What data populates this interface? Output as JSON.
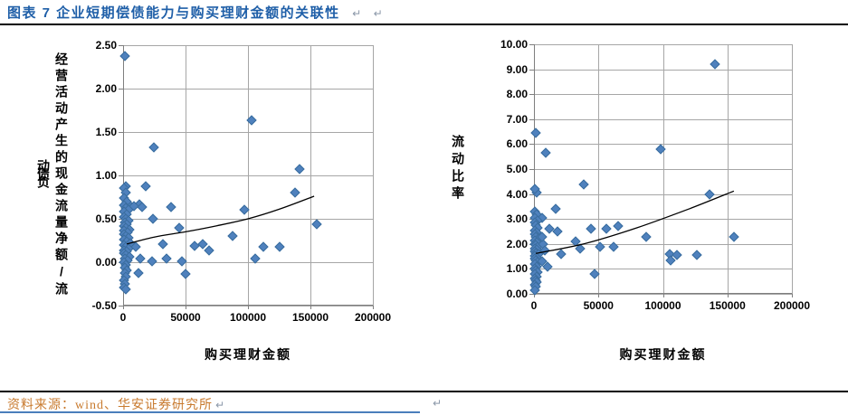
{
  "page": {
    "title": "图表 7  企业短期偿债能力与购买理财金额的关联性",
    "paragraph_mark": "↵",
    "source": "资料来源：wind、华安证券研究所"
  },
  "colors": {
    "title_blue": "#1F5FA8",
    "source_orange": "#C87A2E",
    "marker_fill": "#4F81BD",
    "marker_edge": "#3A6D9E",
    "gridline": "#A6A6A6",
    "axis": "#7F7F7F",
    "trend": "#000000",
    "divider": "#000000",
    "bottom_border": "#4A7EBB",
    "paragraph_mark": "#8A97A8"
  },
  "chart_data": [
    {
      "type": "scatter",
      "xlabel": "购买理财金额",
      "ylabel": "经营活动产生的现金流量净额/流动负债",
      "ylabel_wrap": 17,
      "xlim": [
        0,
        200000
      ],
      "ylim": [
        -0.5,
        2.5
      ],
      "xticks": {
        "values": [
          0,
          50000,
          100000,
          150000,
          200000
        ],
        "labels": [
          "0",
          "50000",
          "100000",
          "150000",
          "200000"
        ]
      },
      "yticks": {
        "values": [
          2.5,
          2.0,
          1.5,
          1.0,
          0.5,
          0.0,
          -0.5
        ],
        "labels": [
          "2.50",
          "2.00",
          "1.50",
          "1.00",
          "0.50",
          "0.00",
          "-0.50"
        ]
      },
      "grid": true,
      "legend": "none",
      "marker": {
        "shape": "diamond",
        "size": 8
      },
      "points": [
        [
          1500,
          2.37
        ],
        [
          103000,
          1.64
        ],
        [
          24500,
          1.32
        ],
        [
          141000,
          1.07
        ],
        [
          2000,
          0.87
        ],
        [
          18000,
          0.88
        ],
        [
          3500,
          0.68
        ],
        [
          13000,
          0.67
        ],
        [
          9000,
          0.65
        ],
        [
          15000,
          0.64
        ],
        [
          38500,
          0.64
        ],
        [
          97000,
          0.6
        ],
        [
          138000,
          0.8
        ],
        [
          24000,
          0.5
        ],
        [
          45000,
          0.4
        ],
        [
          88000,
          0.3
        ],
        [
          155000,
          0.44
        ],
        [
          10000,
          0.18
        ],
        [
          32000,
          0.21
        ],
        [
          57000,
          0.19
        ],
        [
          64000,
          0.21
        ],
        [
          69000,
          0.14
        ],
        [
          112000,
          0.18
        ],
        [
          125000,
          0.18
        ],
        [
          106000,
          0.04
        ],
        [
          23000,
          0.01
        ],
        [
          35000,
          0.04
        ],
        [
          47000,
          0.01
        ],
        [
          14000,
          0.04
        ],
        [
          50000,
          -0.14
        ],
        [
          12000,
          -0.13
        ],
        [
          500,
          0.85
        ],
        [
          2500,
          0.8
        ],
        [
          1000,
          0.74
        ],
        [
          3000,
          0.7
        ],
        [
          500,
          0.66
        ],
        [
          2000,
          0.63
        ],
        [
          4000,
          0.6
        ],
        [
          1000,
          0.58
        ],
        [
          3000,
          0.55
        ],
        [
          500,
          0.52
        ],
        [
          2000,
          0.5
        ],
        [
          4500,
          0.48
        ],
        [
          1500,
          0.46
        ],
        [
          3000,
          0.44
        ],
        [
          500,
          0.42
        ],
        [
          2500,
          0.4
        ],
        [
          5000,
          0.38
        ],
        [
          1000,
          0.36
        ],
        [
          3500,
          0.34
        ],
        [
          500,
          0.32
        ],
        [
          2000,
          0.3
        ],
        [
          4000,
          0.28
        ],
        [
          1000,
          0.26
        ],
        [
          3000,
          0.24
        ],
        [
          6000,
          0.22
        ],
        [
          500,
          0.2
        ],
        [
          2500,
          0.18
        ],
        [
          4500,
          0.16
        ],
        [
          1000,
          0.14
        ],
        [
          3000,
          0.12
        ],
        [
          500,
          0.1
        ],
        [
          2000,
          0.08
        ],
        [
          5000,
          0.06
        ],
        [
          1500,
          0.04
        ],
        [
          3500,
          0.02
        ],
        [
          800,
          0.0
        ],
        [
          2500,
          -0.03
        ],
        [
          1200,
          -0.06
        ],
        [
          3000,
          -0.09
        ],
        [
          1500,
          -0.13
        ],
        [
          2200,
          -0.17
        ],
        [
          800,
          -0.21
        ],
        [
          1800,
          -0.25
        ],
        [
          1000,
          -0.29
        ],
        [
          2000,
          -0.31
        ]
      ],
      "trendline": [
        [
          3000,
          0.21
        ],
        [
          25000,
          0.29
        ],
        [
          50000,
          0.35
        ],
        [
          75000,
          0.42
        ],
        [
          100000,
          0.5
        ],
        [
          125000,
          0.61
        ],
        [
          153000,
          0.76
        ]
      ]
    },
    {
      "type": "scatter",
      "xlabel": "购买理财金额",
      "ylabel": "流动比率",
      "xlim": [
        0,
        200000
      ],
      "ylim": [
        0,
        10
      ],
      "xticks": {
        "values": [
          0,
          50000,
          100000,
          150000,
          200000
        ],
        "labels": [
          "0",
          "50000",
          "100000",
          "150000",
          "200000"
        ]
      },
      "yticks": {
        "values": [
          10,
          9,
          8,
          7,
          6,
          5,
          4,
          3,
          2,
          1,
          0
        ],
        "labels": [
          "10.00",
          "9.00",
          "8.00",
          "7.00",
          "6.00",
          "5.00",
          "4.00",
          "3.00",
          "2.00",
          "1.00",
          "0.00"
        ]
      },
      "grid": true,
      "legend": "none",
      "marker": {
        "shape": "diamond",
        "size": 8
      },
      "points": [
        [
          140000,
          9.22
        ],
        [
          1200,
          6.45
        ],
        [
          9000,
          5.65
        ],
        [
          98000,
          5.8
        ],
        [
          38500,
          4.4
        ],
        [
          2300,
          4.05
        ],
        [
          400,
          4.2
        ],
        [
          136000,
          4.0
        ],
        [
          17000,
          3.4
        ],
        [
          6000,
          3.05
        ],
        [
          12000,
          2.6
        ],
        [
          18000,
          2.5
        ],
        [
          44000,
          2.6
        ],
        [
          56000,
          2.6
        ],
        [
          65000,
          2.7
        ],
        [
          87000,
          2.3
        ],
        [
          155000,
          2.3
        ],
        [
          32000,
          2.1
        ],
        [
          36000,
          1.8
        ],
        [
          51000,
          1.9
        ],
        [
          62000,
          1.9
        ],
        [
          105000,
          1.6
        ],
        [
          111000,
          1.55
        ],
        [
          106000,
          1.35
        ],
        [
          126000,
          1.55
        ],
        [
          21000,
          1.6
        ],
        [
          10500,
          1.1
        ],
        [
          47000,
          0.8
        ],
        [
          500,
          3.3
        ],
        [
          2000,
          3.2
        ],
        [
          800,
          3.05
        ],
        [
          2500,
          2.95
        ],
        [
          500,
          2.85
        ],
        [
          1500,
          2.75
        ],
        [
          3000,
          2.65
        ],
        [
          800,
          2.55
        ],
        [
          2000,
          2.45
        ],
        [
          500,
          2.38
        ],
        [
          1500,
          2.3
        ],
        [
          3500,
          2.22
        ],
        [
          800,
          2.15
        ],
        [
          2200,
          2.08
        ],
        [
          500,
          2.0
        ],
        [
          1500,
          1.95
        ],
        [
          3000,
          1.88
        ],
        [
          800,
          1.82
        ],
        [
          2000,
          1.76
        ],
        [
          500,
          1.7
        ],
        [
          1500,
          1.64
        ],
        [
          3200,
          1.58
        ],
        [
          800,
          1.52
        ],
        [
          2000,
          1.46
        ],
        [
          500,
          1.4
        ],
        [
          1500,
          1.33
        ],
        [
          2800,
          1.26
        ],
        [
          800,
          1.18
        ],
        [
          1800,
          1.1
        ],
        [
          500,
          1.02
        ],
        [
          1500,
          0.94
        ],
        [
          2500,
          0.86
        ],
        [
          800,
          0.78
        ],
        [
          1800,
          0.7
        ],
        [
          500,
          0.62
        ],
        [
          1200,
          0.54
        ],
        [
          2200,
          0.46
        ],
        [
          800,
          0.38
        ],
        [
          1500,
          0.28
        ],
        [
          600,
          0.15
        ],
        [
          7000,
          2.0
        ],
        [
          8500,
          1.75
        ],
        [
          6500,
          1.3
        ],
        [
          6000,
          2.3
        ]
      ],
      "trendline": [
        [
          1500,
          1.62
        ],
        [
          40000,
          2.02
        ],
        [
          80000,
          2.65
        ],
        [
          120000,
          3.4
        ],
        [
          155000,
          4.12
        ]
      ]
    }
  ]
}
